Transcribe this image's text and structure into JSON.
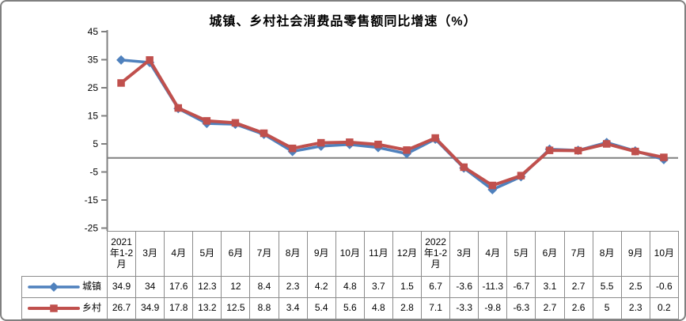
{
  "chart_data": {
    "type": "line",
    "title": "城镇、乡村社会消费品零售额同比增速（%）",
    "categories": [
      "2021年1-2月",
      "3月",
      "4月",
      "5月",
      "6月",
      "7月",
      "8月",
      "9月",
      "10月",
      "11月",
      "12月",
      "2022年1-2月",
      "3月",
      "4月",
      "5月",
      "6月",
      "7月",
      "8月",
      "9月",
      "10月"
    ],
    "series": [
      {
        "id": "urban",
        "name": "城镇",
        "marker": "diamond",
        "color": "#4F81BD",
        "line_width": 3.5,
        "values": [
          34.9,
          34,
          17.6,
          12.3,
          12,
          8.4,
          2.3,
          4.2,
          4.8,
          3.7,
          1.5,
          6.7,
          -3.6,
          -11.3,
          -6.7,
          3.1,
          2.7,
          5.5,
          2.5,
          -0.6
        ]
      },
      {
        "id": "rural",
        "name": "乡村",
        "marker": "square",
        "color": "#C0504D",
        "line_width": 4,
        "values": [
          26.7,
          34.9,
          17.8,
          13.2,
          12.5,
          8.8,
          3.4,
          5.4,
          5.6,
          4.8,
          2.8,
          7.1,
          -3.3,
          -9.8,
          -6.3,
          2.7,
          2.6,
          5,
          2.3,
          0.2
        ]
      }
    ],
    "ylim": [
      -25,
      45
    ],
    "yticks": [
      45,
      35,
      25,
      15,
      5,
      -5,
      -15,
      -25
    ],
    "grid": false,
    "zero_line": true,
    "legend_position": "data-table-left",
    "axis_color": "#808080",
    "table_border_color": "#8c8c8c"
  }
}
